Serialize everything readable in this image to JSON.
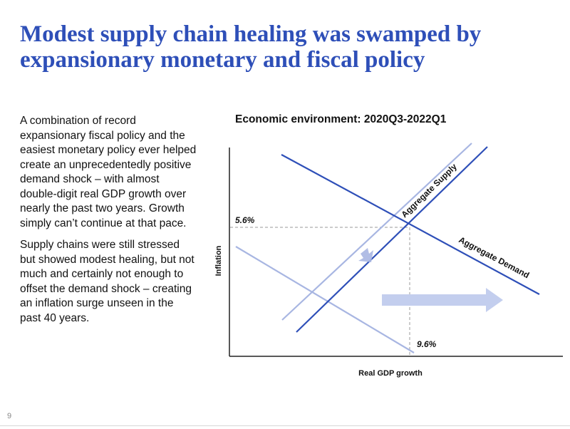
{
  "slide": {
    "title": "Modest supply chain healing was swamped by expansionary monetary and fiscal policy",
    "paragraphs": [
      "A combination of record expansionary fiscal policy and the easiest monetary policy ever helped create an unprecedentedly positive demand shock – with almost double-digit real GDP growth over nearly the past two years. Growth simply can’t continue at that pace.",
      "Supply chains were still stressed but showed modest healing, but not much and certainly not enough to offset the demand shock – creating an inflation surge unseen in the past 40 years."
    ],
    "page_number": "9"
  },
  "diagram": {
    "title": "Economic environment: 2020Q3-2022Q1",
    "x_axis_label": "Real GDP growth",
    "y_axis_label": "Inflation",
    "curves": {
      "supply_label": "Aggregate Supply",
      "demand_label": "Aggregate Demand"
    },
    "equilibrium": {
      "inflation_label": "5.6%",
      "gdp_label": "9.6%"
    },
    "colors": {
      "curve_dark": "#2E4FB8",
      "curve_light": "#A8B6E2",
      "arrow": "#C3CEEE",
      "guide": "#999999"
    }
  }
}
